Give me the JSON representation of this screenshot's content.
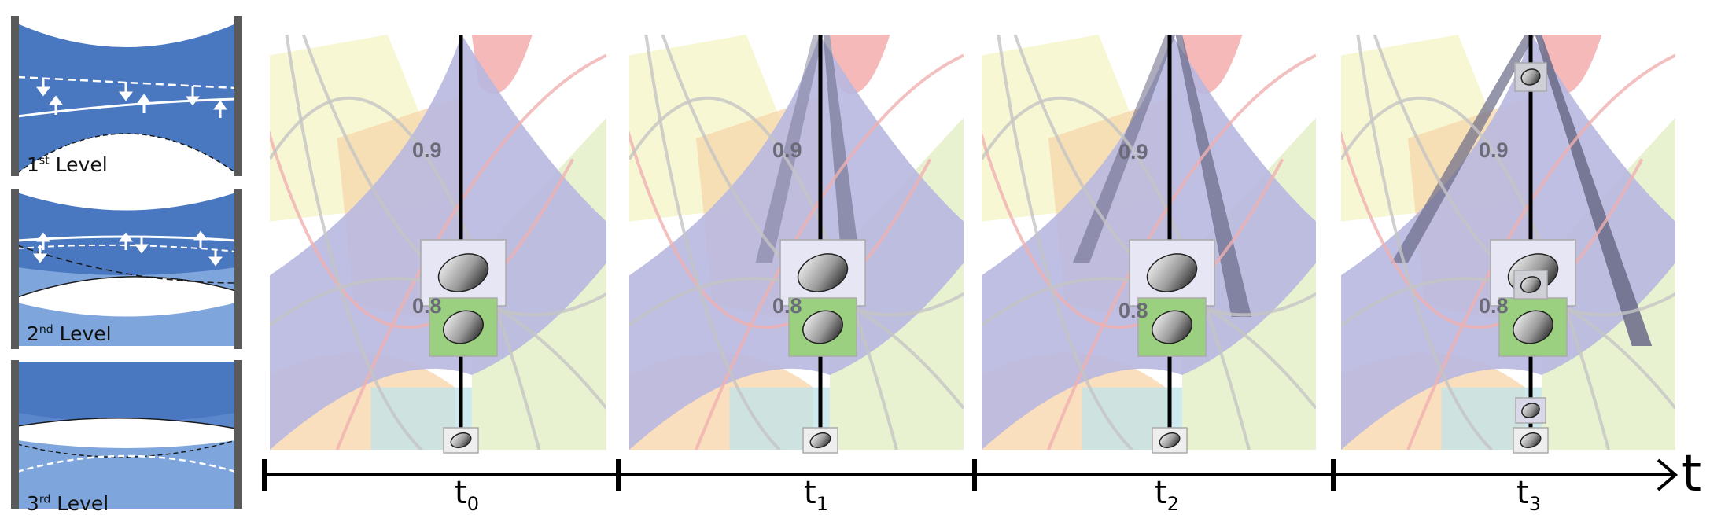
{
  "levels": [
    {
      "number": "1",
      "suffix": "st",
      "word": "Level"
    },
    {
      "number": "2",
      "suffix": "nd",
      "word": "Level"
    },
    {
      "number": "3",
      "suffix": "rd",
      "word": "Level"
    }
  ],
  "panels": [
    {
      "value_top": "0.9",
      "value_mid": "0.8"
    },
    {
      "value_top": "0.9",
      "value_mid": "0.8"
    },
    {
      "value_top": "0.9",
      "value_mid": "0.8"
    },
    {
      "value_top": "0.9",
      "value_mid": "0.8"
    }
  ],
  "timeline": {
    "ticks": [
      {
        "base": "t",
        "sub": "0"
      },
      {
        "base": "t",
        "sub": "1"
      },
      {
        "base": "t",
        "sub": "2"
      },
      {
        "base": "t",
        "sub": "3"
      }
    ],
    "axis_label": "t"
  },
  "colors": {
    "level_blue": "#4a78c0",
    "level_light": "#7ea6dc",
    "post": "#5a5a5a",
    "band_lavender": "#b8b8e0",
    "band_dark": "#6a6a88",
    "band_orange": "#f7d4a8",
    "band_yellow": "#f0f0b0",
    "band_green": "#d8eab0",
    "band_cyan": "#bfe3ea",
    "band_pink": "#f3a8a8",
    "thumb_green": "#9ad080"
  }
}
